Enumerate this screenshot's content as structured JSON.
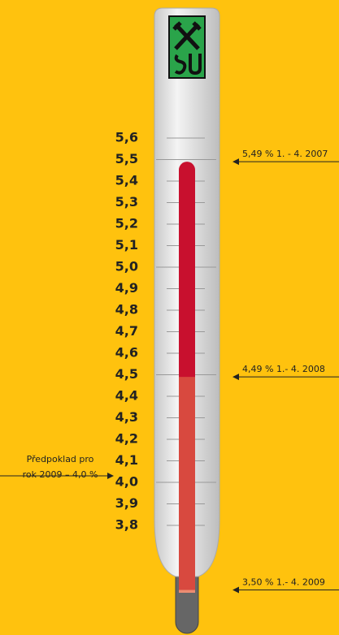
{
  "chart_data": {
    "type": "thermometer",
    "ylim": [
      3.4,
      5.7
    ],
    "yticks": [
      {
        "value": 5.6,
        "label": "5,6"
      },
      {
        "value": 5.5,
        "label": "5,5"
      },
      {
        "value": 5.4,
        "label": "5,4"
      },
      {
        "value": 5.3,
        "label": "5,3"
      },
      {
        "value": 5.2,
        "label": "5,2"
      },
      {
        "value": 5.1,
        "label": "5,1"
      },
      {
        "value": 5.0,
        "label": "5,0"
      },
      {
        "value": 4.9,
        "label": "4,9"
      },
      {
        "value": 4.8,
        "label": "4,8"
      },
      {
        "value": 4.7,
        "label": "4,7"
      },
      {
        "value": 4.6,
        "label": "4,6"
      },
      {
        "value": 4.5,
        "label": "4,5"
      },
      {
        "value": 4.4,
        "label": "4,4"
      },
      {
        "value": 4.3,
        "label": "4,3"
      },
      {
        "value": 4.2,
        "label": "4,2"
      },
      {
        "value": 4.1,
        "label": "4,1"
      },
      {
        "value": 4.0,
        "label": "4,0"
      },
      {
        "value": 3.9,
        "label": "3,9"
      },
      {
        "value": 3.8,
        "label": "3,8"
      }
    ],
    "values": [
      5.49,
      4.49,
      3.5
    ],
    "value_labels": [
      "5,49 % 1. - 4. 2007",
      "4,49 % 1.- 4. 2008",
      "3,50 % 1.- 4. 2009"
    ],
    "colors": [
      "#c8102e",
      "#d8493f",
      "#ec8c72"
    ],
    "annotations": [
      {
        "lines": [
          "Předpoklad pro",
          "rok 2009 – 4,0 %"
        ],
        "value": 4.0
      }
    ]
  }
}
